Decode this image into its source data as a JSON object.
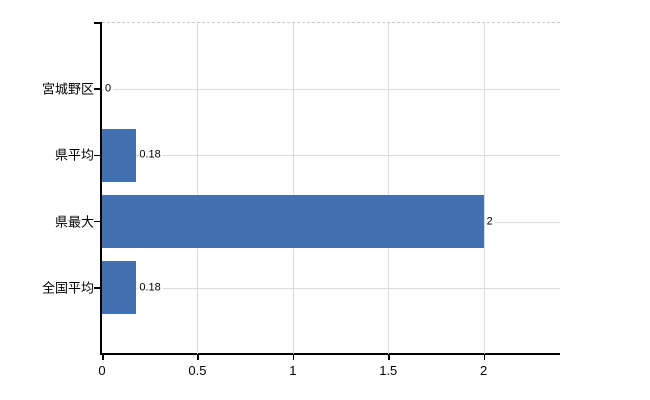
{
  "chart_data": {
    "type": "bar",
    "orientation": "horizontal",
    "title": "",
    "xlabel": "",
    "ylabel": "",
    "categories": [
      "宮城野区",
      "県平均",
      "県最大",
      "全国平均"
    ],
    "values": [
      0,
      0.18,
      2,
      0.18
    ],
    "value_labels": [
      "0",
      "0.18",
      "2",
      "0.18"
    ],
    "x_ticks": [
      0,
      0.5,
      1,
      1.5,
      2
    ],
    "x_tick_labels": [
      "0",
      "0.5",
      "1",
      "1.5",
      "2"
    ],
    "xlim": [
      0,
      2.4
    ],
    "grid": true,
    "legend": "none",
    "colors": {
      "bar": "#4270b0",
      "gridline": "#dadada",
      "axis": "#000000",
      "text": "#000000",
      "background": "#ffffff",
      "top_border_dashed": "#c9c9c9"
    }
  }
}
